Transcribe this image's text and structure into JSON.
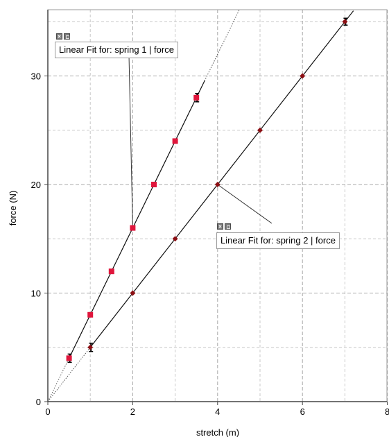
{
  "chart_data": {
    "type": "scatter",
    "xlabel": "stretch (m)",
    "ylabel": "force (N)",
    "xlim": [
      0,
      8
    ],
    "ylim": [
      0,
      35
    ],
    "x_ticks": [
      0,
      2,
      4,
      6,
      8
    ],
    "y_ticks": [
      0,
      10,
      20,
      30
    ],
    "grid": true,
    "series": [
      {
        "name": "spring 1",
        "x": [
          0.5,
          1.0,
          1.5,
          2.0,
          2.5,
          3.0,
          3.5
        ],
        "y": [
          4,
          8,
          12,
          16,
          20,
          24,
          28
        ],
        "color": "#e0163c",
        "marker": "square",
        "fit_slope": 8.0
      },
      {
        "name": "spring 2",
        "x": [
          1,
          2,
          3,
          4,
          5,
          6,
          7
        ],
        "y": [
          5,
          10,
          15,
          20,
          25,
          30,
          35
        ],
        "color": "#8b0f14",
        "marker": "diamond",
        "fit_slope": 5.0
      }
    ],
    "annotations": [
      {
        "text": "Linear Fit for: spring 1 | force",
        "series": "spring 1",
        "anchor": [
          2.0,
          16
        ]
      },
      {
        "text": "Linear Fit for: spring 2 | force",
        "series": "spring 2",
        "anchor": [
          4.0,
          20
        ]
      }
    ]
  }
}
